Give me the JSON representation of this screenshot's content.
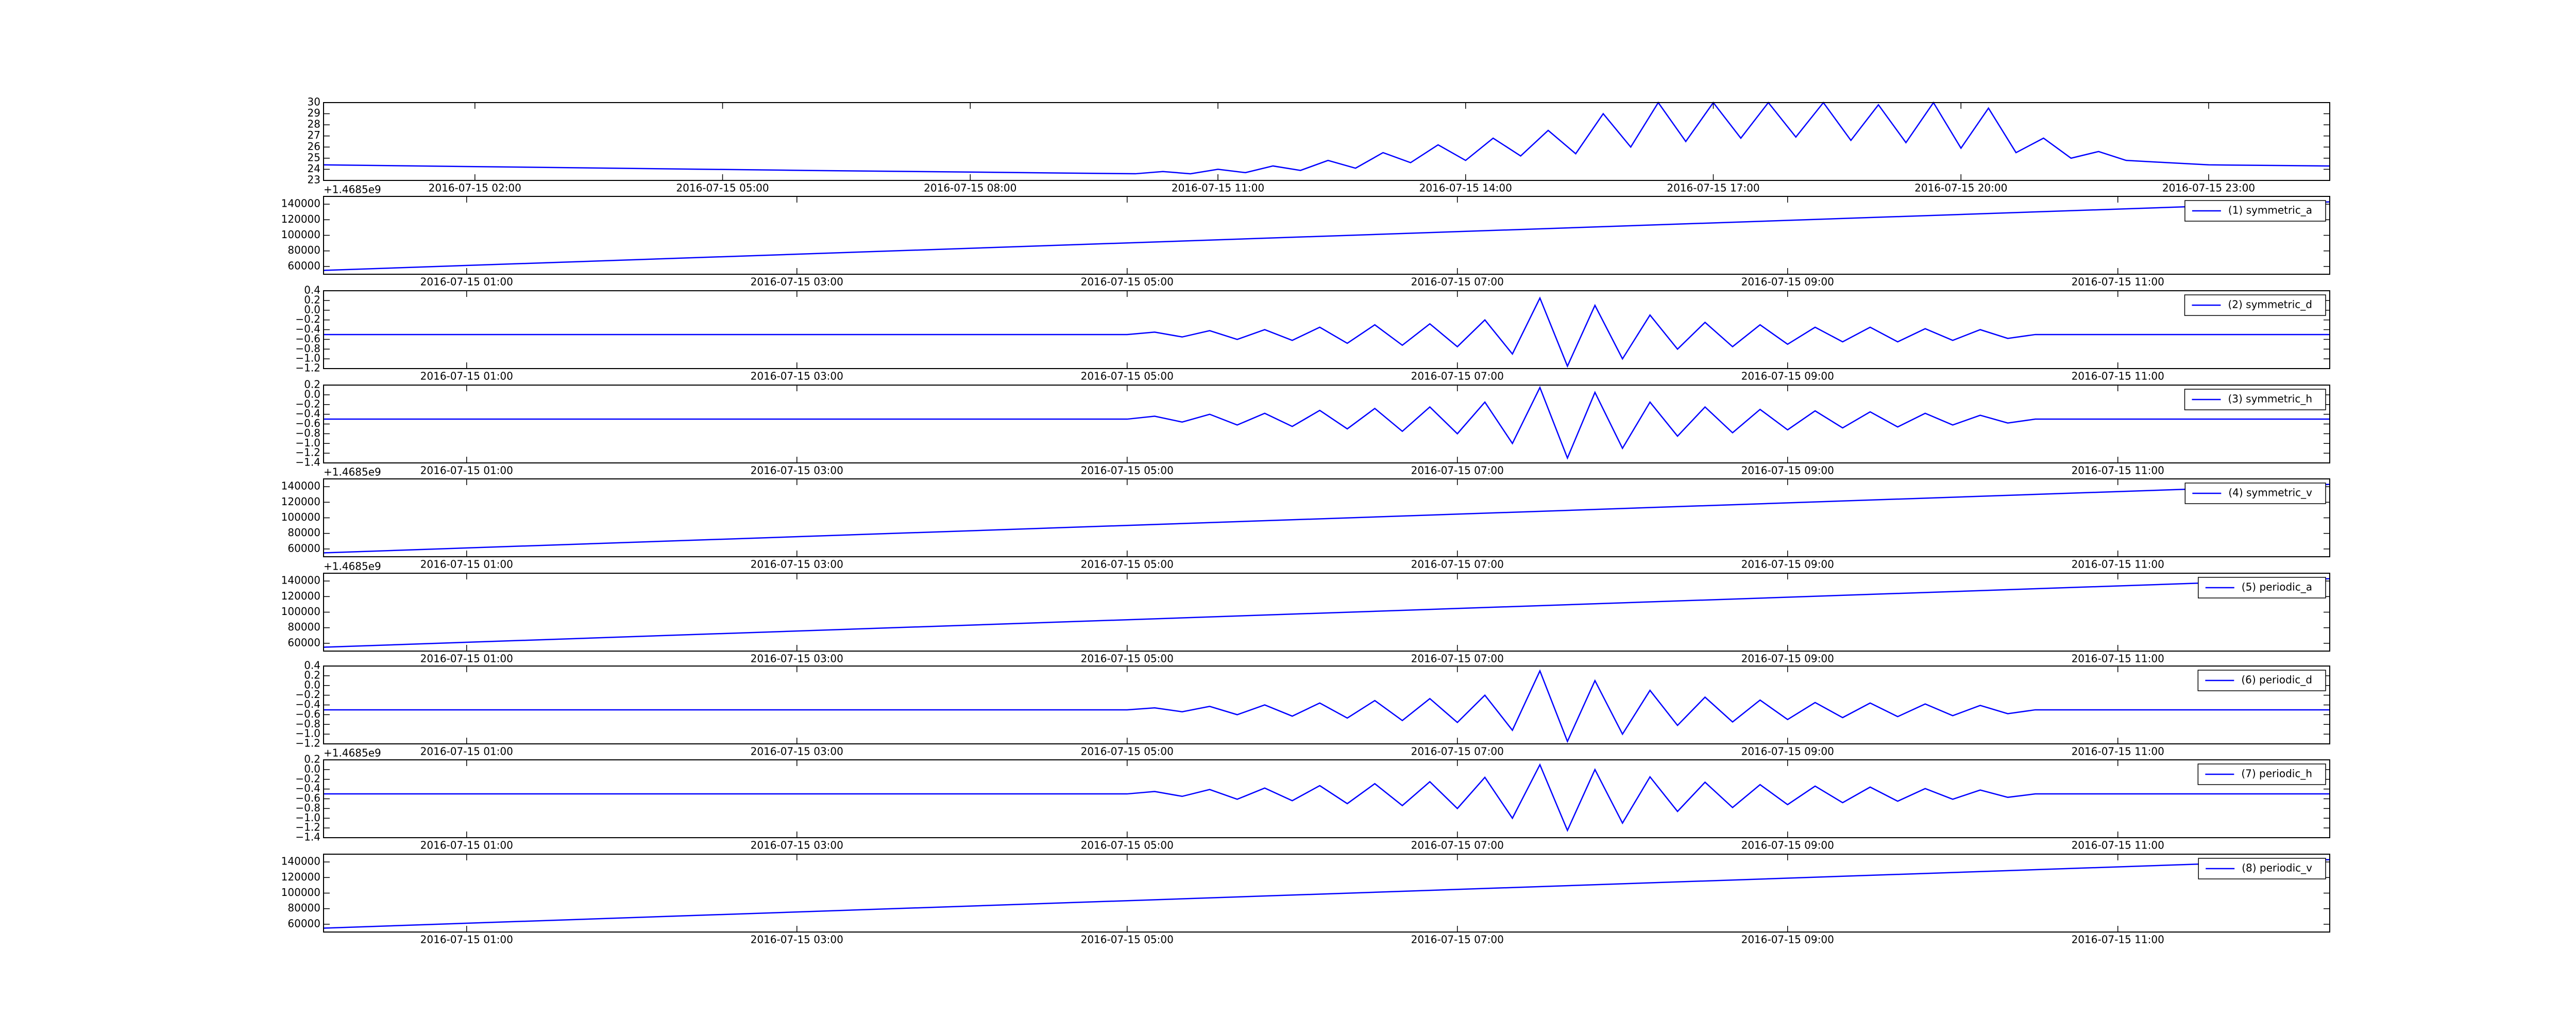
{
  "chart_data": [
    {
      "type": "line",
      "x": [
        "2016-07-15 00:10",
        "2016-07-15 06:00",
        "2016-07-15 10:00",
        "2016-07-15 10:20",
        "2016-07-15 10:40",
        "2016-07-15 11:00",
        "2016-07-15 11:20",
        "2016-07-15 11:40",
        "2016-07-15 12:00",
        "2016-07-15 12:20",
        "2016-07-15 12:40",
        "2016-07-15 13:00",
        "2016-07-15 13:20",
        "2016-07-15 13:40",
        "2016-07-15 14:00",
        "2016-07-15 14:20",
        "2016-07-15 14:40",
        "2016-07-15 15:00",
        "2016-07-15 15:20",
        "2016-07-15 15:40",
        "2016-07-15 16:00",
        "2016-07-15 16:20",
        "2016-07-15 16:40",
        "2016-07-15 17:00",
        "2016-07-15 17:20",
        "2016-07-15 17:40",
        "2016-07-15 18:00",
        "2016-07-15 18:20",
        "2016-07-15 18:40",
        "2016-07-15 19:00",
        "2016-07-15 19:20",
        "2016-07-15 19:40",
        "2016-07-15 20:00",
        "2016-07-15 20:20",
        "2016-07-15 20:40",
        "2016-07-15 21:00",
        "2016-07-15 21:20",
        "2016-07-15 21:40",
        "2016-07-15 22:00",
        "2016-07-15 22:30",
        "2016-07-15 23:00",
        "2016-07-16 00:28"
      ],
      "series": [
        {
          "color": "#0000ff",
          "values": [
            24.4,
            23.9,
            23.6,
            23.8,
            23.6,
            24.0,
            23.7,
            24.3,
            23.9,
            24.8,
            24.1,
            25.5,
            24.6,
            26.2,
            24.8,
            26.8,
            25.2,
            27.5,
            25.4,
            29.0,
            26.0,
            30.0,
            26.5,
            30.0,
            26.8,
            30.0,
            26.9,
            30.0,
            26.6,
            29.8,
            26.4,
            30.0,
            25.9,
            29.5,
            25.5,
            26.8,
            25.0,
            25.6,
            24.8,
            24.6,
            24.4,
            24.3
          ]
        }
      ],
      "xlim": [
        "2016-07-15 00:10",
        "2016-07-16 00:28"
      ],
      "xticks": [
        "2016-07-15 02:00",
        "2016-07-15 05:00",
        "2016-07-15 08:00",
        "2016-07-15 11:00",
        "2016-07-15 14:00",
        "2016-07-15 17:00",
        "2016-07-15 20:00",
        "2016-07-15 23:00"
      ],
      "ylim": [
        23,
        30
      ],
      "yticks": [
        23,
        24,
        25,
        26,
        27,
        28,
        29,
        30
      ]
    },
    {
      "type": "line",
      "x": [
        "2016-07-15 00:08",
        "2016-07-15 12:17"
      ],
      "series": [
        {
          "name": "(1) symmetric_a",
          "color": "#0000ff",
          "values": [
            55000,
            143000
          ]
        }
      ],
      "xlim": [
        "2016-07-15 00:08",
        "2016-07-15 12:17"
      ],
      "xticks": [
        "2016-07-15 01:00",
        "2016-07-15 03:00",
        "2016-07-15 05:00",
        "2016-07-15 07:00",
        "2016-07-15 09:00",
        "2016-07-15 11:00"
      ],
      "ylim": [
        50000,
        150000
      ],
      "yticks": [
        60000,
        80000,
        100000,
        120000,
        140000
      ],
      "y_offset_label": "+1.4685e9",
      "legend": "upper right"
    },
    {
      "type": "line",
      "x": [
        "2016-07-15 00:08",
        "2016-07-15 05:00",
        "2016-07-15 05:10",
        "2016-07-15 05:20",
        "2016-07-15 05:30",
        "2016-07-15 05:40",
        "2016-07-15 05:50",
        "2016-07-15 06:00",
        "2016-07-15 06:10",
        "2016-07-15 06:20",
        "2016-07-15 06:30",
        "2016-07-15 06:40",
        "2016-07-15 06:50",
        "2016-07-15 07:00",
        "2016-07-15 07:10",
        "2016-07-15 07:20",
        "2016-07-15 07:30",
        "2016-07-15 07:40",
        "2016-07-15 07:50",
        "2016-07-15 08:00",
        "2016-07-15 08:10",
        "2016-07-15 08:20",
        "2016-07-15 08:30",
        "2016-07-15 08:40",
        "2016-07-15 08:50",
        "2016-07-15 09:00",
        "2016-07-15 09:10",
        "2016-07-15 09:20",
        "2016-07-15 09:30",
        "2016-07-15 09:40",
        "2016-07-15 09:50",
        "2016-07-15 10:00",
        "2016-07-15 10:10",
        "2016-07-15 10:20",
        "2016-07-15 10:30",
        "2016-07-15 12:17"
      ],
      "series": [
        {
          "name": "(2) symmetric_d",
          "color": "#0000ff",
          "values": [
            -0.5,
            -0.5,
            -0.45,
            -0.55,
            -0.42,
            -0.6,
            -0.4,
            -0.62,
            -0.35,
            -0.68,
            -0.3,
            -0.72,
            -0.28,
            -0.75,
            -0.2,
            -0.9,
            0.25,
            -1.15,
            0.1,
            -1.0,
            -0.1,
            -0.8,
            -0.25,
            -0.75,
            -0.3,
            -0.7,
            -0.35,
            -0.65,
            -0.35,
            -0.65,
            -0.38,
            -0.62,
            -0.4,
            -0.58,
            -0.5,
            -0.5
          ]
        }
      ],
      "xlim": [
        "2016-07-15 00:08",
        "2016-07-15 12:17"
      ],
      "xticks": [
        "2016-07-15 01:00",
        "2016-07-15 03:00",
        "2016-07-15 05:00",
        "2016-07-15 07:00",
        "2016-07-15 09:00",
        "2016-07-15 11:00"
      ],
      "ylim": [
        -1.2,
        0.4
      ],
      "yticks": [
        {
          "value": -1.2,
          "label": "−1.2"
        },
        {
          "value": -1.0,
          "label": "−1.0"
        },
        {
          "value": -0.8,
          "label": "−0.8"
        },
        {
          "value": -0.6,
          "label": "−0.6"
        },
        {
          "value": -0.4,
          "label": "−0.4"
        },
        {
          "value": -0.2,
          "label": "−0.2"
        },
        {
          "value": 0,
          "label": "0.0"
        },
        0.2,
        0.4
      ],
      "legend": "upper right"
    },
    {
      "type": "line",
      "x": [
        "2016-07-15 00:08",
        "2016-07-15 05:00",
        "2016-07-15 05:10",
        "2016-07-15 05:20",
        "2016-07-15 05:30",
        "2016-07-15 05:40",
        "2016-07-15 05:50",
        "2016-07-15 06:00",
        "2016-07-15 06:10",
        "2016-07-15 06:20",
        "2016-07-15 06:30",
        "2016-07-15 06:40",
        "2016-07-15 06:50",
        "2016-07-15 07:00",
        "2016-07-15 07:10",
        "2016-07-15 07:20",
        "2016-07-15 07:30",
        "2016-07-15 07:40",
        "2016-07-15 07:50",
        "2016-07-15 08:00",
        "2016-07-15 08:10",
        "2016-07-15 08:20",
        "2016-07-15 08:30",
        "2016-07-15 08:40",
        "2016-07-15 08:50",
        "2016-07-15 09:00",
        "2016-07-15 09:10",
        "2016-07-15 09:20",
        "2016-07-15 09:30",
        "2016-07-15 09:40",
        "2016-07-15 09:50",
        "2016-07-15 10:00",
        "2016-07-15 10:10",
        "2016-07-15 10:20",
        "2016-07-15 10:30",
        "2016-07-15 12:17"
      ],
      "series": [
        {
          "name": "(3) symmetric_h",
          "color": "#0000ff",
          "values": [
            -0.5,
            -0.5,
            -0.44,
            -0.56,
            -0.4,
            -0.62,
            -0.38,
            -0.65,
            -0.32,
            -0.7,
            -0.28,
            -0.75,
            -0.25,
            -0.8,
            -0.15,
            -1.0,
            0.15,
            -1.3,
            0.05,
            -1.1,
            -0.15,
            -0.85,
            -0.25,
            -0.78,
            -0.3,
            -0.72,
            -0.33,
            -0.68,
            -0.35,
            -0.66,
            -0.38,
            -0.62,
            -0.42,
            -0.58,
            -0.5,
            -0.5
          ]
        }
      ],
      "xlim": [
        "2016-07-15 00:08",
        "2016-07-15 12:17"
      ],
      "xticks": [
        "2016-07-15 01:00",
        "2016-07-15 03:00",
        "2016-07-15 05:00",
        "2016-07-15 07:00",
        "2016-07-15 09:00",
        "2016-07-15 11:00"
      ],
      "ylim": [
        -1.4,
        0.2
      ],
      "yticks": [
        {
          "value": -1.4,
          "label": "−1.4"
        },
        {
          "value": -1.2,
          "label": "−1.2"
        },
        {
          "value": -1.0,
          "label": "−1.0"
        },
        {
          "value": -0.8,
          "label": "−0.8"
        },
        {
          "value": -0.6,
          "label": "−0.6"
        },
        {
          "value": -0.4,
          "label": "−0.4"
        },
        {
          "value": -0.2,
          "label": "−0.2"
        },
        {
          "value": 0,
          "label": "0.0"
        },
        0.2
      ],
      "legend": "upper right"
    },
    {
      "type": "line",
      "x": [
        "2016-07-15 00:08",
        "2016-07-15 12:17"
      ],
      "series": [
        {
          "name": "(4) symmetric_v",
          "color": "#0000ff",
          "values": [
            55000,
            143000
          ]
        }
      ],
      "xlim": [
        "2016-07-15 00:08",
        "2016-07-15 12:17"
      ],
      "xticks": [
        "2016-07-15 01:00",
        "2016-07-15 03:00",
        "2016-07-15 05:00",
        "2016-07-15 07:00",
        "2016-07-15 09:00",
        "2016-07-15 11:00"
      ],
      "ylim": [
        50000,
        150000
      ],
      "yticks": [
        60000,
        80000,
        100000,
        120000,
        140000
      ],
      "y_offset_label": "+1.4685e9",
      "legend": "upper right"
    },
    {
      "type": "line",
      "x": [
        "2016-07-15 00:08",
        "2016-07-15 12:17"
      ],
      "series": [
        {
          "name": "(5) periodic_a",
          "color": "#0000ff",
          "values": [
            55000,
            143000
          ]
        }
      ],
      "xlim": [
        "2016-07-15 00:08",
        "2016-07-15 12:17"
      ],
      "xticks": [
        "2016-07-15 01:00",
        "2016-07-15 03:00",
        "2016-07-15 05:00",
        "2016-07-15 07:00",
        "2016-07-15 09:00",
        "2016-07-15 11:00"
      ],
      "ylim": [
        50000,
        150000
      ],
      "yticks": [
        60000,
        80000,
        100000,
        120000,
        140000
      ],
      "y_offset_label": "+1.4685e9",
      "legend": "upper right"
    },
    {
      "type": "line",
      "x": [
        "2016-07-15 00:08",
        "2016-07-15 05:00",
        "2016-07-15 05:10",
        "2016-07-15 05:20",
        "2016-07-15 05:30",
        "2016-07-15 05:40",
        "2016-07-15 05:50",
        "2016-07-15 06:00",
        "2016-07-15 06:10",
        "2016-07-15 06:20",
        "2016-07-15 06:30",
        "2016-07-15 06:40",
        "2016-07-15 06:50",
        "2016-07-15 07:00",
        "2016-07-15 07:10",
        "2016-07-15 07:20",
        "2016-07-15 07:30",
        "2016-07-15 07:40",
        "2016-07-15 07:50",
        "2016-07-15 08:00",
        "2016-07-15 08:10",
        "2016-07-15 08:20",
        "2016-07-15 08:30",
        "2016-07-15 08:40",
        "2016-07-15 08:50",
        "2016-07-15 09:00",
        "2016-07-15 09:10",
        "2016-07-15 09:20",
        "2016-07-15 09:30",
        "2016-07-15 09:40",
        "2016-07-15 09:50",
        "2016-07-15 10:00",
        "2016-07-15 10:10",
        "2016-07-15 10:20",
        "2016-07-15 10:30",
        "2016-07-15 12:17"
      ],
      "series": [
        {
          "name": "(6) periodic_d",
          "color": "#0000ff",
          "values": [
            -0.5,
            -0.5,
            -0.46,
            -0.54,
            -0.43,
            -0.6,
            -0.4,
            -0.63,
            -0.36,
            -0.67,
            -0.31,
            -0.72,
            -0.27,
            -0.76,
            -0.2,
            -0.92,
            0.3,
            -1.15,
            0.1,
            -1.0,
            -0.1,
            -0.82,
            -0.24,
            -0.75,
            -0.3,
            -0.7,
            -0.35,
            -0.66,
            -0.36,
            -0.64,
            -0.38,
            -0.62,
            -0.41,
            -0.58,
            -0.5,
            -0.5
          ]
        }
      ],
      "xlim": [
        "2016-07-15 00:08",
        "2016-07-15 12:17"
      ],
      "xticks": [
        "2016-07-15 01:00",
        "2016-07-15 03:00",
        "2016-07-15 05:00",
        "2016-07-15 07:00",
        "2016-07-15 09:00",
        "2016-07-15 11:00"
      ],
      "ylim": [
        -1.2,
        0.4
      ],
      "yticks": [
        {
          "value": -1.2,
          "label": "−1.2"
        },
        {
          "value": -1.0,
          "label": "−1.0"
        },
        {
          "value": -0.8,
          "label": "−0.8"
        },
        {
          "value": -0.6,
          "label": "−0.6"
        },
        {
          "value": -0.4,
          "label": "−0.4"
        },
        {
          "value": -0.2,
          "label": "−0.2"
        },
        {
          "value": 0,
          "label": "0.0"
        },
        0.2,
        0.4
      ],
      "legend": "upper right"
    },
    {
      "type": "line",
      "x": [
        "2016-07-15 00:08",
        "2016-07-15 05:00",
        "2016-07-15 05:10",
        "2016-07-15 05:20",
        "2016-07-15 05:30",
        "2016-07-15 05:40",
        "2016-07-15 05:50",
        "2016-07-15 06:00",
        "2016-07-15 06:10",
        "2016-07-15 06:20",
        "2016-07-15 06:30",
        "2016-07-15 06:40",
        "2016-07-15 06:50",
        "2016-07-15 07:00",
        "2016-07-15 07:10",
        "2016-07-15 07:20",
        "2016-07-15 07:30",
        "2016-07-15 07:40",
        "2016-07-15 07:50",
        "2016-07-15 08:00",
        "2016-07-15 08:10",
        "2016-07-15 08:20",
        "2016-07-15 08:30",
        "2016-07-15 08:40",
        "2016-07-15 08:50",
        "2016-07-15 09:00",
        "2016-07-15 09:10",
        "2016-07-15 09:20",
        "2016-07-15 09:30",
        "2016-07-15 09:40",
        "2016-07-15 09:50",
        "2016-07-15 10:00",
        "2016-07-15 10:10",
        "2016-07-15 10:20",
        "2016-07-15 10:30",
        "2016-07-15 12:17"
      ],
      "series": [
        {
          "name": "(7) periodic_h",
          "color": "#0000ff",
          "values": [
            -0.5,
            -0.5,
            -0.45,
            -0.55,
            -0.41,
            -0.61,
            -0.38,
            -0.64,
            -0.33,
            -0.7,
            -0.29,
            -0.74,
            -0.25,
            -0.8,
            -0.16,
            -1.0,
            0.1,
            -1.25,
            0.0,
            -1.1,
            -0.15,
            -0.86,
            -0.26,
            -0.78,
            -0.31,
            -0.72,
            -0.34,
            -0.68,
            -0.36,
            -0.65,
            -0.39,
            -0.61,
            -0.42,
            -0.57,
            -0.5,
            -0.5
          ]
        }
      ],
      "xlim": [
        "2016-07-15 00:08",
        "2016-07-15 12:17"
      ],
      "xticks": [
        "2016-07-15 01:00",
        "2016-07-15 03:00",
        "2016-07-15 05:00",
        "2016-07-15 07:00",
        "2016-07-15 09:00",
        "2016-07-15 11:00"
      ],
      "ylim": [
        -1.4,
        0.2
      ],
      "yticks": [
        {
          "value": -1.4,
          "label": "−1.4"
        },
        {
          "value": -1.2,
          "label": "−1.2"
        },
        {
          "value": -1.0,
          "label": "−1.0"
        },
        {
          "value": -0.8,
          "label": "−0.8"
        },
        {
          "value": -0.6,
          "label": "−0.6"
        },
        {
          "value": -0.4,
          "label": "−0.4"
        },
        {
          "value": -0.2,
          "label": "−0.2"
        },
        {
          "value": 0,
          "label": "0.0"
        },
        0.2
      ],
      "y_offset_label": "+1.4685e9",
      "legend": "upper right"
    },
    {
      "type": "line",
      "x": [
        "2016-07-15 00:08",
        "2016-07-15 12:17"
      ],
      "series": [
        {
          "name": "(8) periodic_v",
          "color": "#0000ff",
          "values": [
            55000,
            143000
          ]
        }
      ],
      "xlim": [
        "2016-07-15 00:08",
        "2016-07-15 12:17"
      ],
      "xticks": [
        "2016-07-15 01:00",
        "2016-07-15 03:00",
        "2016-07-15 05:00",
        "2016-07-15 07:00",
        "2016-07-15 09:00",
        "2016-07-15 11:00"
      ],
      "ylim": [
        50000,
        150000
      ],
      "yticks": [
        60000,
        80000,
        100000,
        120000,
        140000
      ],
      "legend": "upper right"
    }
  ]
}
